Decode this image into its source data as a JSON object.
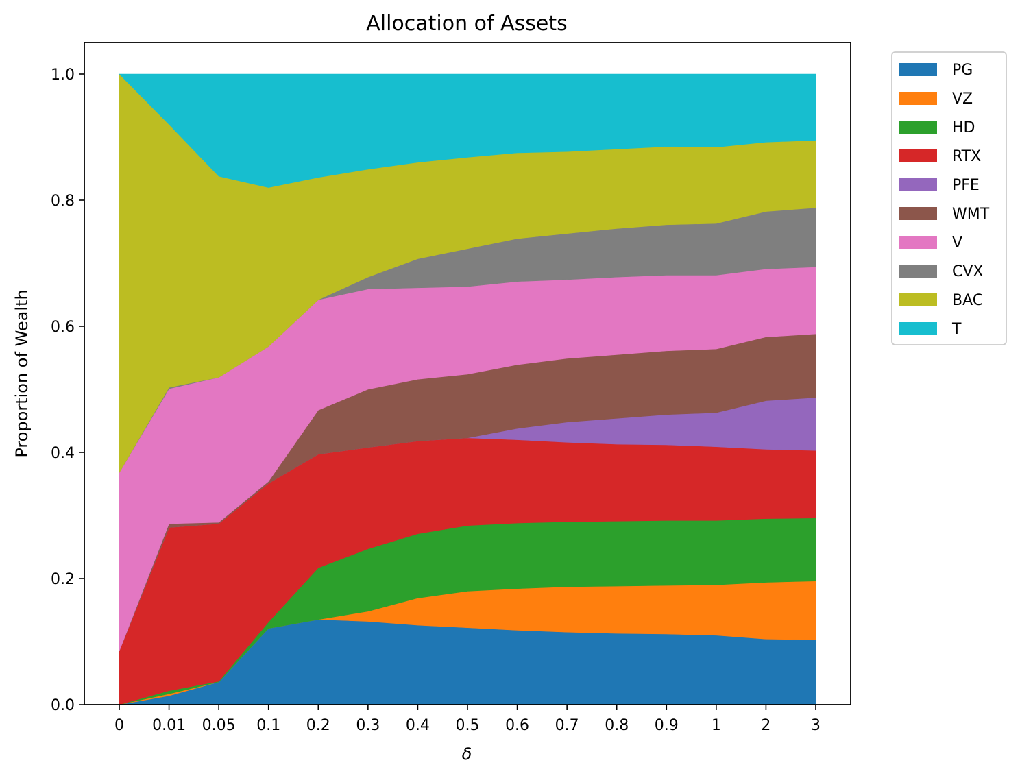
{
  "chart_data": {
    "type": "area",
    "stacked": true,
    "title": "Allocation of Assets",
    "xlabel": "δ",
    "ylabel": "Proportion of Wealth",
    "categories": [
      "0",
      "0.01",
      "0.05",
      "0.1",
      "0.2",
      "0.3",
      "0.4",
      "0.5",
      "0.6",
      "0.7",
      "0.8",
      "0.9",
      "1",
      "2",
      "3"
    ],
    "ylim": [
      0,
      1.05
    ],
    "yticks": [
      "0.0",
      "0.2",
      "0.4",
      "0.6",
      "0.8",
      "1.0"
    ],
    "grid": false,
    "legend_position": "outside-right-top",
    "series": [
      {
        "name": "PG",
        "color": "#1f77b4",
        "values": [
          0.0,
          0.014,
          0.036,
          0.121,
          0.135,
          0.132,
          0.126,
          0.122,
          0.118,
          0.115,
          0.113,
          0.112,
          0.11,
          0.104,
          0.103
        ]
      },
      {
        "name": "VZ",
        "color": "#ff7f0e",
        "values": [
          0.0,
          0.003,
          0.0,
          0.0,
          0.0,
          0.016,
          0.043,
          0.058,
          0.066,
          0.072,
          0.075,
          0.077,
          0.08,
          0.09,
          0.093
        ]
      },
      {
        "name": "HD",
        "color": "#2ca02c",
        "values": [
          0.0,
          0.005,
          0.001,
          0.01,
          0.082,
          0.099,
          0.102,
          0.104,
          0.104,
          0.103,
          0.103,
          0.103,
          0.102,
          0.101,
          0.1
        ]
      },
      {
        "name": "RTX",
        "color": "#d62728",
        "values": [
          0.085,
          0.259,
          0.25,
          0.22,
          0.18,
          0.161,
          0.147,
          0.139,
          0.132,
          0.126,
          0.122,
          0.12,
          0.117,
          0.11,
          0.107
        ]
      },
      {
        "name": "PFE",
        "color": "#9467bd",
        "values": [
          0.0,
          0.0,
          0.0,
          0.0,
          0.0,
          0.0,
          0.0,
          0.0,
          0.018,
          0.032,
          0.041,
          0.048,
          0.054,
          0.077,
          0.084
        ]
      },
      {
        "name": "WMT",
        "color": "#8c564b",
        "values": [
          0.0,
          0.006,
          0.002,
          0.003,
          0.07,
          0.092,
          0.098,
          0.101,
          0.101,
          0.101,
          0.101,
          0.101,
          0.101,
          0.101,
          0.101
        ]
      },
      {
        "name": "V",
        "color": "#e377c2",
        "values": [
          0.283,
          0.214,
          0.23,
          0.214,
          0.175,
          0.159,
          0.145,
          0.139,
          0.132,
          0.125,
          0.123,
          0.12,
          0.117,
          0.108,
          0.106
        ]
      },
      {
        "name": "CVX",
        "color": "#7f7f7f",
        "values": [
          0.0,
          0.002,
          0.0,
          0.0,
          0.0,
          0.019,
          0.046,
          0.06,
          0.068,
          0.073,
          0.077,
          0.08,
          0.082,
          0.091,
          0.094
        ]
      },
      {
        "name": "BAC",
        "color": "#bcbd22",
        "values": [
          0.632,
          0.417,
          0.319,
          0.252,
          0.194,
          0.171,
          0.153,
          0.145,
          0.136,
          0.13,
          0.126,
          0.124,
          0.121,
          0.11,
          0.107
        ]
      },
      {
        "name": "T",
        "color": "#17becf",
        "values": [
          0.0,
          0.08,
          0.162,
          0.18,
          0.164,
          0.151,
          0.14,
          0.132,
          0.125,
          0.123,
          0.119,
          0.115,
          0.116,
          0.108,
          0.105
        ]
      }
    ]
  }
}
